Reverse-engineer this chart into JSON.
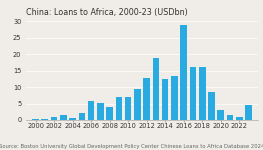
{
  "title": "China: Loans to Africa, 2000-23 (USDbn)",
  "source": "Source: Boston University Global Development Policy Center Chinese Loans to Africa Database 2024",
  "years": [
    2000,
    2001,
    2002,
    2003,
    2004,
    2005,
    2006,
    2007,
    2008,
    2009,
    2010,
    2011,
    2012,
    2013,
    2014,
    2015,
    2016,
    2017,
    2018,
    2019,
    2020,
    2021,
    2022,
    2023
  ],
  "values": [
    0.3,
    0.2,
    0.8,
    1.5,
    0.7,
    2.2,
    5.8,
    5.3,
    3.9,
    7.1,
    7.1,
    9.5,
    12.8,
    18.8,
    12.5,
    13.5,
    28.9,
    16.1,
    16.1,
    8.6,
    3.1,
    1.4,
    0.9,
    4.7
  ],
  "bar_color": "#29ABE2",
  "background_color": "#f0ede8",
  "grid_color": "#ffffff",
  "spine_color": "#aaaaaa",
  "text_color": "#333333",
  "source_color": "#666666",
  "ylim": [
    0,
    31
  ],
  "yticks": [
    0,
    5,
    10,
    15,
    20,
    25,
    30
  ],
  "xlim": [
    1999.0,
    2024.0
  ],
  "title_fontsize": 5.8,
  "source_fontsize": 3.8,
  "tick_fontsize": 4.8,
  "bar_width": 0.72
}
